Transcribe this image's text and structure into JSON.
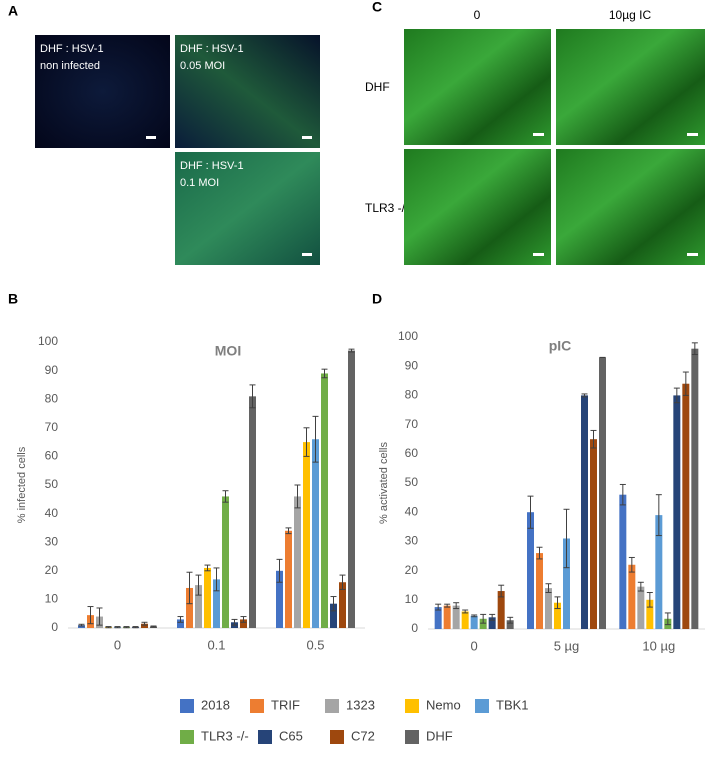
{
  "panels": {
    "a": {
      "label": "A",
      "images": [
        {
          "lines": [
            "DHF : HSV-1",
            "non infected"
          ]
        },
        {
          "lines": [
            "DHF : HSV-1",
            "0.05 MOI"
          ]
        },
        {
          "lines": [
            "DHF : HSV-1",
            "0.1 MOI"
          ]
        }
      ]
    },
    "c": {
      "label": "C",
      "columns": [
        "0",
        "10µg IC"
      ],
      "rows": [
        "DHF",
        "TLR3 -/-"
      ]
    }
  },
  "chart_data": [
    {
      "type": "bar",
      "panel_label": "B",
      "title": "MOI",
      "y_label": "% infected cells",
      "categories": [
        "0",
        "0.1",
        "0.5"
      ],
      "ylim": [
        0,
        100
      ],
      "yticks": [
        0,
        10,
        20,
        30,
        40,
        50,
        60,
        70,
        80,
        90,
        100
      ],
      "grid": false,
      "series": [
        {
          "name": "2018",
          "color": "#4472c4",
          "values": [
            1,
            3,
            20
          ],
          "errors": [
            0.3,
            1,
            4
          ]
        },
        {
          "name": "TRIF",
          "color": "#ed7d31",
          "values": [
            4.5,
            14,
            34
          ],
          "errors": [
            3,
            5.5,
            1
          ]
        },
        {
          "name": "1323",
          "color": "#a5a5a5",
          "values": [
            4,
            15,
            46
          ],
          "errors": [
            3,
            3.5,
            4
          ]
        },
        {
          "name": "Nemo",
          "color": "#ffc000",
          "values": [
            0.3,
            21,
            65
          ],
          "errors": [
            0.2,
            1,
            5
          ]
        },
        {
          "name": "TBK1",
          "color": "#5b9bd5",
          "values": [
            0.3,
            17,
            66
          ],
          "errors": [
            0.2,
            4,
            8
          ]
        },
        {
          "name": "TLR3 -/-",
          "color": "#70ad47",
          "values": [
            0.3,
            46,
            89
          ],
          "errors": [
            0.2,
            2,
            1.5
          ]
        },
        {
          "name": "C65",
          "color": "#264478",
          "values": [
            0.3,
            2,
            8.5
          ],
          "errors": [
            0.2,
            1,
            2.5
          ]
        },
        {
          "name": "C72",
          "color": "#9e480e",
          "values": [
            1.5,
            3,
            16
          ],
          "errors": [
            0.5,
            1,
            2.5
          ]
        },
        {
          "name": "DHF",
          "color": "#636363",
          "values": [
            0.5,
            81,
            97
          ],
          "errors": [
            0.2,
            4,
            0.5
          ]
        }
      ]
    },
    {
      "type": "bar",
      "panel_label": "D",
      "title": "pIC",
      "y_label": "% activated cells",
      "categories": [
        "0",
        "5 µg",
        "10 µg"
      ],
      "ylim": [
        0,
        100
      ],
      "yticks": [
        0,
        10,
        20,
        30,
        40,
        50,
        60,
        70,
        80,
        90,
        100
      ],
      "grid": false,
      "series": [
        {
          "name": "2018",
          "color": "#4472c4",
          "values": [
            7.5,
            40,
            46
          ],
          "errors": [
            1,
            5.5,
            3.5
          ]
        },
        {
          "name": "TRIF",
          "color": "#ed7d31",
          "values": [
            8,
            26,
            22
          ],
          "errors": [
            0.5,
            2,
            2.5
          ]
        },
        {
          "name": "1323",
          "color": "#a5a5a5",
          "values": [
            8,
            14,
            14.5
          ],
          "errors": [
            1,
            1.5,
            1.5
          ]
        },
        {
          "name": "Nemo",
          "color": "#ffc000",
          "values": [
            6,
            9,
            10
          ],
          "errors": [
            0.5,
            2,
            2.5
          ]
        },
        {
          "name": "TBK1",
          "color": "#5b9bd5",
          "values": [
            4.5,
            31,
            39
          ],
          "errors": [
            0.3,
            10,
            7
          ]
        },
        {
          "name": "TLR3 -/-",
          "color": "#70ad47",
          "values": [
            3.5,
            null,
            3.5
          ],
          "errors": [
            1.5,
            null,
            2
          ]
        },
        {
          "name": "C65",
          "color": "#264478",
          "values": [
            4,
            80,
            80
          ],
          "errors": [
            1,
            0.5,
            2.5
          ]
        },
        {
          "name": "C72",
          "color": "#9e480e",
          "values": [
            13,
            65,
            84
          ],
          "errors": [
            2,
            3,
            4
          ]
        },
        {
          "name": "DHF",
          "color": "#636363",
          "values": [
            3,
            93,
            96
          ],
          "errors": [
            1,
            0,
            2
          ]
        }
      ]
    }
  ]
}
